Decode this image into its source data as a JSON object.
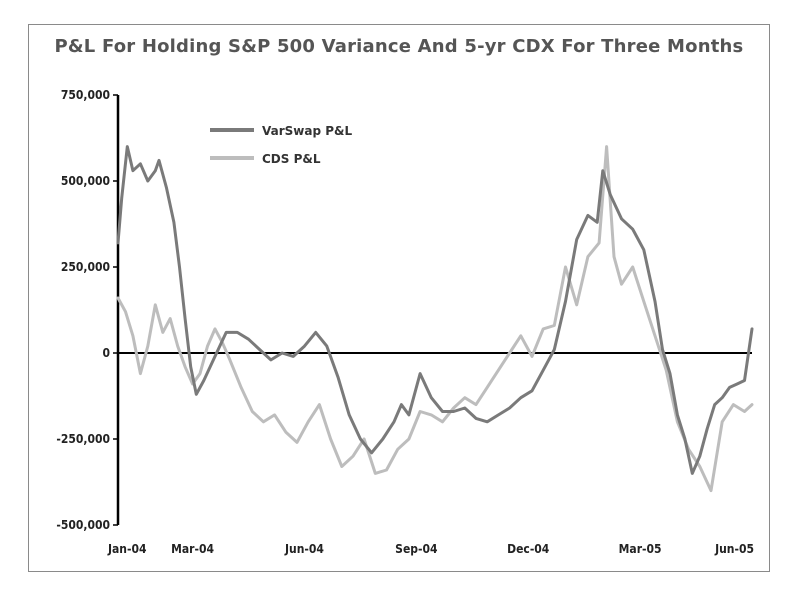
{
  "chart_data": {
    "type": "line",
    "title": "P&L For Holding S&P 500 Variance And 5-yr CDX For Three Months",
    "xlabel": "",
    "ylabel": "",
    "ylim": [
      -500000,
      750000
    ],
    "y_ticks": [
      {
        "value": 750000,
        "label": "750,000"
      },
      {
        "value": 500000,
        "label": "500,000"
      },
      {
        "value": 250000,
        "label": "250,000"
      },
      {
        "value": 0,
        "label": "0"
      },
      {
        "value": -250000,
        "label": "-250,000"
      },
      {
        "value": -500000,
        "label": "-500,000"
      }
    ],
    "x_ticks": [
      {
        "value": 0,
        "label": "Jan-04"
      },
      {
        "value": 2,
        "label": "Mar-04"
      },
      {
        "value": 5,
        "label": "Jun-04"
      },
      {
        "value": 8,
        "label": "Sep-04"
      },
      {
        "value": 11,
        "label": "Dec-04"
      },
      {
        "value": 14,
        "label": "Mar-05"
      },
      {
        "value": 17,
        "label": "Jun-05"
      }
    ],
    "legend_position": "top-left",
    "grid": false,
    "series": [
      {
        "name": "VarSwap P&L",
        "color": "#7a7a7a",
        "x": [
          0,
          0.1,
          0.25,
          0.4,
          0.6,
          0.8,
          1.0,
          1.1,
          1.3,
          1.5,
          1.65,
          1.8,
          1.95,
          2.1,
          2.3,
          2.6,
          2.9,
          3.2,
          3.5,
          3.8,
          4.1,
          4.4,
          4.7,
          5.0,
          5.3,
          5.6,
          5.9,
          6.2,
          6.5,
          6.8,
          7.1,
          7.4,
          7.6,
          7.8,
          8.1,
          8.4,
          8.7,
          9.0,
          9.3,
          9.6,
          9.9,
          10.2,
          10.5,
          10.8,
          11.1,
          11.4,
          11.7,
          12.0,
          12.3,
          12.6,
          12.85,
          13.0,
          13.2,
          13.5,
          13.8,
          14.1,
          14.4,
          14.6,
          14.8,
          15.0,
          15.2,
          15.4,
          15.6,
          15.8,
          16.0,
          16.2,
          16.4,
          16.6,
          16.8,
          17.0
        ],
        "values": [
          320000,
          450000,
          600000,
          530000,
          550000,
          500000,
          530000,
          560000,
          480000,
          380000,
          250000,
          100000,
          -40000,
          -120000,
          -80000,
          -10000,
          60000,
          60000,
          40000,
          10000,
          -20000,
          0,
          -10000,
          20000,
          60000,
          20000,
          -70000,
          -180000,
          -250000,
          -290000,
          -250000,
          -200000,
          -150000,
          -180000,
          -60000,
          -130000,
          -170000,
          -170000,
          -160000,
          -190000,
          -200000,
          -180000,
          -160000,
          -130000,
          -110000,
          -50000,
          10000,
          150000,
          330000,
          400000,
          380000,
          530000,
          460000,
          390000,
          360000,
          300000,
          150000,
          10000,
          -60000,
          -180000,
          -250000,
          -350000,
          -300000,
          -220000,
          -150000,
          -130000,
          -100000,
          -90000,
          -80000,
          70000
        ]
      },
      {
        "name": "CDS P&L",
        "color": "#bdbdbd",
        "x": [
          0,
          0.2,
          0.4,
          0.6,
          0.8,
          1.0,
          1.2,
          1.4,
          1.6,
          1.8,
          2.0,
          2.2,
          2.4,
          2.6,
          2.8,
          3.0,
          3.3,
          3.6,
          3.9,
          4.2,
          4.5,
          4.8,
          5.1,
          5.4,
          5.7,
          6.0,
          6.3,
          6.6,
          6.9,
          7.2,
          7.5,
          7.8,
          8.1,
          8.4,
          8.7,
          9.0,
          9.3,
          9.6,
          9.9,
          10.2,
          10.5,
          10.8,
          11.1,
          11.4,
          11.7,
          12.0,
          12.3,
          12.6,
          12.9,
          13.1,
          13.3,
          13.5,
          13.8,
          14.1,
          14.4,
          14.7,
          15.0,
          15.3,
          15.6,
          15.9,
          16.2,
          16.5,
          16.8,
          17.0
        ],
        "values": [
          160000,
          120000,
          50000,
          -60000,
          20000,
          140000,
          60000,
          100000,
          20000,
          -40000,
          -90000,
          -60000,
          20000,
          70000,
          30000,
          -20000,
          -100000,
          -170000,
          -200000,
          -180000,
          -230000,
          -260000,
          -200000,
          -150000,
          -250000,
          -330000,
          -300000,
          -250000,
          -350000,
          -340000,
          -280000,
          -250000,
          -170000,
          -180000,
          -200000,
          -160000,
          -130000,
          -150000,
          -100000,
          -50000,
          0,
          50000,
          -10000,
          70000,
          80000,
          250000,
          140000,
          280000,
          320000,
          600000,
          280000,
          200000,
          250000,
          150000,
          50000,
          -50000,
          -200000,
          -280000,
          -330000,
          -400000,
          -200000,
          -150000,
          -170000,
          -150000
        ]
      }
    ]
  }
}
